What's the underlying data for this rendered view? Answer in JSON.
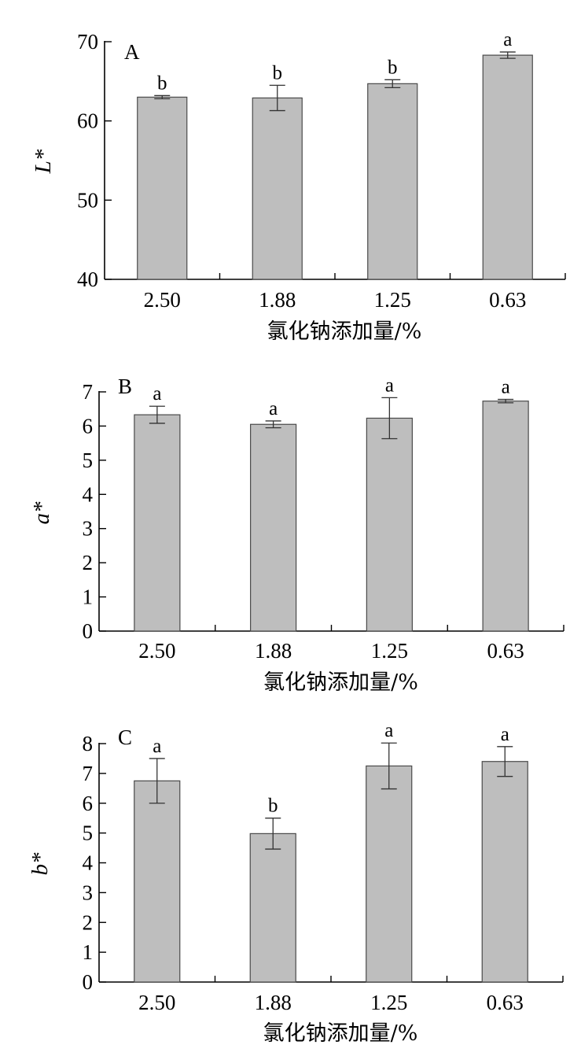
{
  "chart_data": [
    {
      "type": "bar",
      "panel_label": "A",
      "categories": [
        "2.50",
        "1.88",
        "1.25",
        "0.63"
      ],
      "values": [
        63.0,
        62.9,
        64.7,
        68.3
      ],
      "errors": [
        0.2,
        1.6,
        0.5,
        0.4
      ],
      "significance": [
        "b",
        "b",
        "b",
        "a"
      ],
      "ylabel": "L*",
      "xlabel": "氯化钠添加量/%",
      "ylim": [
        40,
        70
      ],
      "yticks": [
        "40",
        "50",
        "60",
        "70"
      ]
    },
    {
      "type": "bar",
      "panel_label": "B",
      "categories": [
        "2.50",
        "1.88",
        "1.25",
        "0.63"
      ],
      "values": [
        6.33,
        6.05,
        6.23,
        6.73
      ],
      "errors": [
        0.25,
        0.1,
        0.6,
        0.05
      ],
      "significance": [
        "a",
        "a",
        "a",
        "a"
      ],
      "ylabel": "a*",
      "xlabel": "氯化钠添加量/%",
      "ylim": [
        0,
        7
      ],
      "yticks": [
        "0",
        "1",
        "2",
        "3",
        "4",
        "5",
        "6",
        "7"
      ]
    },
    {
      "type": "bar",
      "panel_label": "C",
      "categories": [
        "2.50",
        "1.88",
        "1.25",
        "0.63"
      ],
      "values": [
        6.75,
        4.98,
        7.25,
        7.4
      ],
      "errors": [
        0.75,
        0.52,
        0.77,
        0.5
      ],
      "significance": [
        "a",
        "b",
        "a",
        "a"
      ],
      "ylabel": "b*",
      "xlabel": "氯化钠添加量/%",
      "ylim": [
        0,
        8
      ],
      "yticks": [
        "0",
        "1",
        "2",
        "3",
        "4",
        "5",
        "6",
        "7",
        "8"
      ]
    }
  ]
}
